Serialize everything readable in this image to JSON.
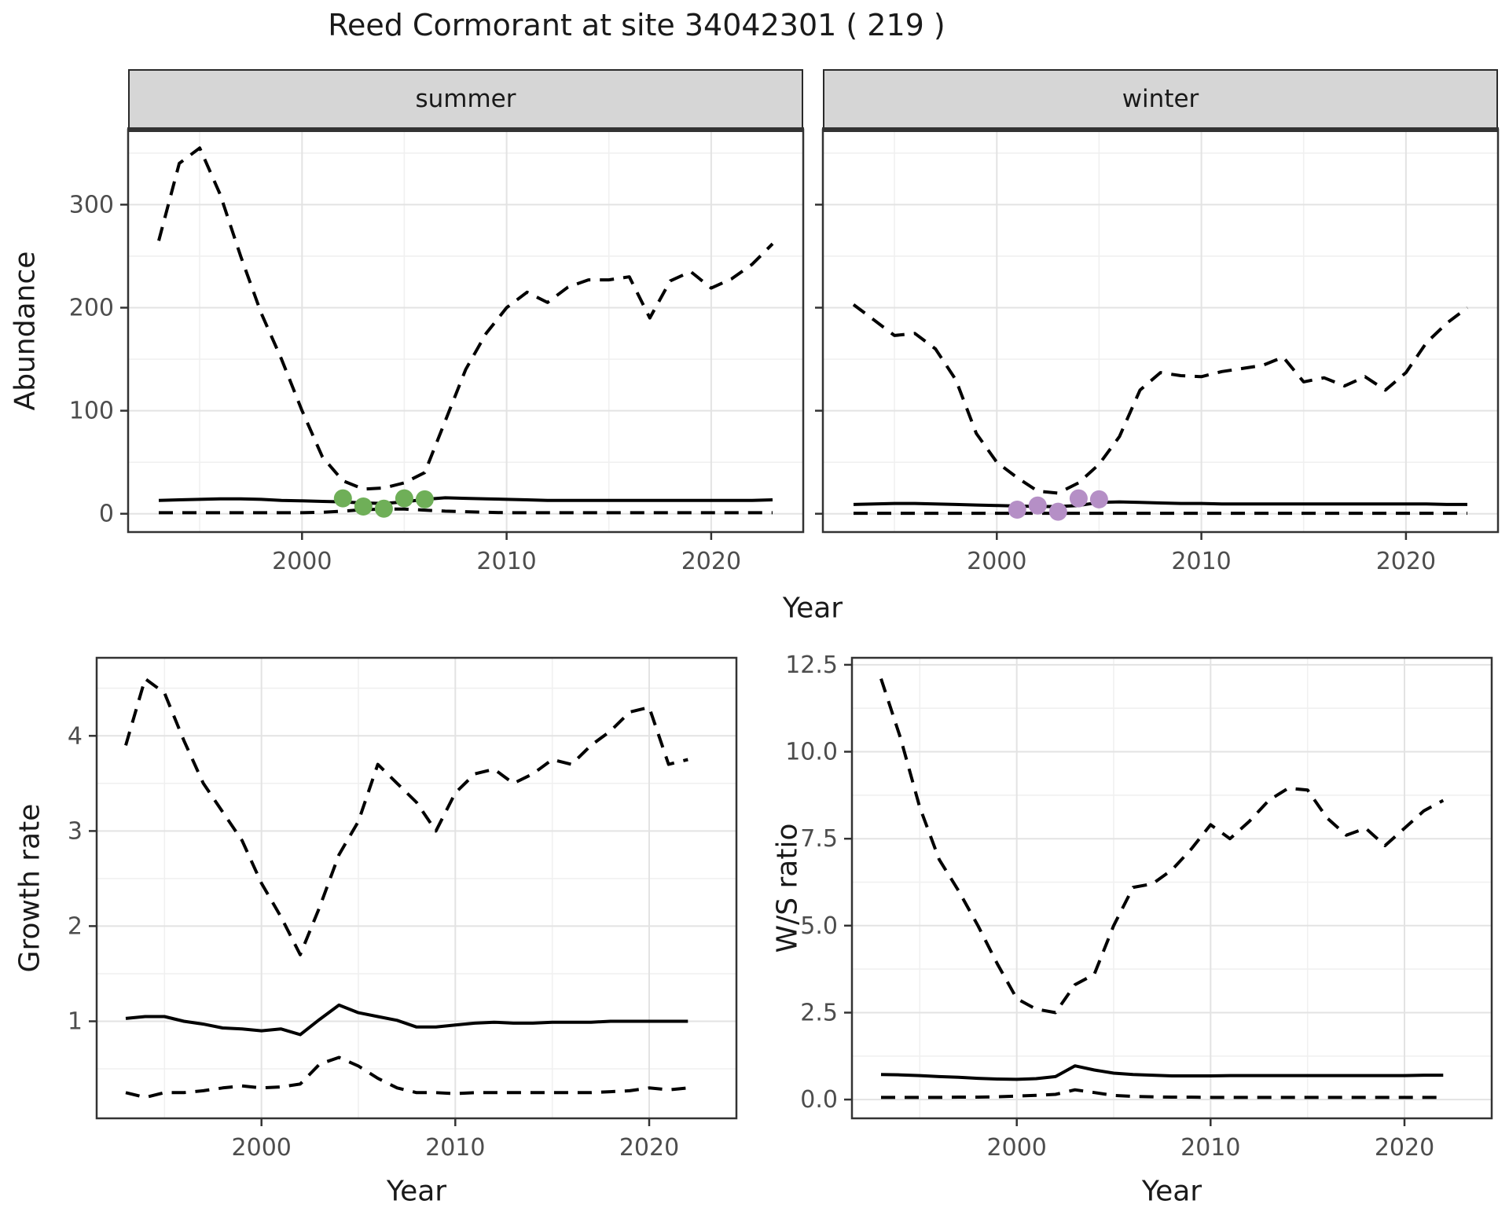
{
  "title": "Reed Cormorant at site 34042301 ( 219 )",
  "colors": {
    "summer_points": "#6FAF58",
    "winter_points": "#B58FC6",
    "series_line": "#000000",
    "grid_major": "#E3E3E3",
    "grid_minor": "#F0F0F0",
    "panel_border": "#333333",
    "strip_bg": "#D6D6D6",
    "strip_border": "#2A2A2A",
    "tick_label": "#4D4D4D",
    "text": "#1A1A1A"
  },
  "chart_data": [
    {
      "id": "abundance_summer",
      "type": "line",
      "facet": "summer",
      "xlabel": "Year",
      "ylabel": "Abundance",
      "xlim": [
        1991.5,
        2024.5
      ],
      "ylim": [
        -17.75,
        372.75
      ],
      "xticks": [
        2000,
        2010,
        2020
      ],
      "xticks_minor": [
        1995,
        2005,
        2015
      ],
      "yticks": [
        0,
        100,
        200,
        300
      ],
      "ytick_labels": [
        "0",
        "100",
        "200",
        "300"
      ],
      "yticks_minor": [
        50,
        150,
        250,
        350
      ],
      "grid": true,
      "legend": "none",
      "years": [
        1993,
        1994,
        1995,
        1996,
        1997,
        1998,
        1999,
        2000,
        2001,
        2002,
        2003,
        2004,
        2005,
        2006,
        2007,
        2008,
        2009,
        2010,
        2011,
        2012,
        2013,
        2014,
        2015,
        2016,
        2017,
        2018,
        2019,
        2020,
        2021,
        2022,
        2023
      ],
      "series": [
        {
          "name": "upper_95_ci",
          "style": "dashed",
          "values": [
            265,
            340,
            355,
            310,
            250,
            195,
            150,
            100,
            55,
            32,
            24,
            25,
            30,
            40,
            90,
            140,
            175,
            200,
            215,
            205,
            220,
            227,
            227,
            230,
            190,
            226,
            235,
            219,
            228,
            242,
            262
          ]
        },
        {
          "name": "median",
          "style": "solid",
          "values": [
            13,
            13.5,
            14,
            14.5,
            14.5,
            14,
            13,
            12.5,
            12,
            11.5,
            10.5,
            10,
            11.5,
            14,
            15.5,
            15,
            14.5,
            14,
            13.5,
            13,
            13,
            13,
            13,
            13,
            13,
            13,
            13,
            13,
            13,
            13,
            13.5
          ]
        },
        {
          "name": "lower_95_ci",
          "style": "dashed",
          "values": [
            1,
            1,
            1,
            1,
            1,
            1,
            1,
            1,
            1.5,
            2.5,
            4,
            4.5,
            4.5,
            3.5,
            2.5,
            2,
            1.5,
            1,
            1,
            1,
            1,
            1,
            1,
            1,
            1,
            1,
            1,
            1,
            1,
            1,
            1
          ]
        }
      ],
      "points": {
        "name": "observed_summer_count",
        "color": "#6FAF58",
        "years": [
          2002,
          2003,
          2004,
          2005,
          2006
        ],
        "values": [
          15,
          7,
          5,
          15,
          14
        ]
      }
    },
    {
      "id": "abundance_winter",
      "type": "line",
      "facet": "winter",
      "xlabel": "Year",
      "xlim": [
        1991.5,
        2024.5
      ],
      "ylim": [
        -17.75,
        372.75
      ],
      "xticks": [
        2000,
        2010,
        2020
      ],
      "xticks_minor": [
        1995,
        2005,
        2015
      ],
      "yticks": [
        0,
        100,
        200,
        300
      ],
      "ytick_labels": [],
      "yticks_minor": [
        50,
        150,
        250,
        350
      ],
      "grid": true,
      "legend": "none",
      "years": [
        1993,
        1994,
        1995,
        1996,
        1997,
        1998,
        1999,
        2000,
        2001,
        2002,
        2003,
        2004,
        2005,
        2006,
        2007,
        2008,
        2009,
        2010,
        2011,
        2012,
        2013,
        2014,
        2015,
        2016,
        2017,
        2018,
        2019,
        2020,
        2021,
        2022,
        2023
      ],
      "series": [
        {
          "name": "upper_95_ci",
          "style": "dashed",
          "values": [
            203,
            188,
            173,
            175,
            160,
            130,
            78,
            50,
            35,
            22,
            20,
            30,
            48,
            75,
            120,
            137,
            134,
            133,
            138,
            141,
            144,
            152,
            128,
            132,
            124,
            133,
            120,
            137,
            166,
            185,
            200
          ]
        },
        {
          "name": "median",
          "style": "solid",
          "values": [
            9,
            9.5,
            10,
            10,
            9.5,
            9,
            8.5,
            8,
            7.5,
            7,
            7,
            8,
            11,
            11.5,
            11,
            10.5,
            10,
            10,
            9.5,
            9.5,
            9.5,
            9.5,
            9.5,
            9.5,
            9.5,
            9.5,
            9.5,
            9.5,
            9.5,
            9,
            9
          ]
        },
        {
          "name": "lower_95_ci",
          "style": "dashed",
          "values": [
            0.5,
            0.5,
            0.5,
            0.5,
            0.5,
            0.5,
            0.5,
            0.5,
            0.5,
            0.5,
            0.5,
            0.5,
            0.5,
            0.5,
            0.5,
            0.5,
            0.5,
            0.5,
            0.5,
            0.5,
            0.5,
            0.5,
            0.5,
            0.5,
            0.5,
            0.5,
            0.5,
            0.5,
            0.5,
            0.5,
            0.5
          ]
        }
      ],
      "points": {
        "name": "observed_winter_count",
        "color": "#B58FC6",
        "years": [
          2001,
          2002,
          2003,
          2004,
          2005
        ],
        "values": [
          4,
          8,
          2,
          15,
          14
        ]
      }
    },
    {
      "id": "growth_rate",
      "type": "line",
      "facet": null,
      "xlabel": "Year",
      "ylabel": "Growth rate",
      "xlim": [
        1991.5,
        2024.5
      ],
      "ylim": [
        -0.02,
        4.82
      ],
      "xticks": [
        2000,
        2010,
        2020
      ],
      "xticks_minor": [
        1995,
        2005,
        2015
      ],
      "yticks": [
        1,
        2,
        3,
        4
      ],
      "ytick_labels": [
        "1",
        "2",
        "3",
        "4"
      ],
      "yticks_minor": [
        0.5,
        1.5,
        2.5,
        3.5,
        4.5
      ],
      "grid": true,
      "legend": "none",
      "years": [
        1993,
        1994,
        1995,
        1996,
        1997,
        1998,
        1999,
        2000,
        2001,
        2002,
        2003,
        2004,
        2005,
        2006,
        2007,
        2008,
        2009,
        2010,
        2011,
        2012,
        2013,
        2014,
        2015,
        2016,
        2017,
        2018,
        2019,
        2020,
        2021,
        2022
      ],
      "series": [
        {
          "name": "upper_95_ci",
          "style": "dashed",
          "values": [
            3.9,
            4.6,
            4.45,
            3.95,
            3.5,
            3.2,
            2.9,
            2.45,
            2.1,
            1.7,
            2.2,
            2.75,
            3.1,
            3.7,
            3.5,
            3.3,
            3.0,
            3.4,
            3.6,
            3.65,
            3.5,
            3.6,
            3.75,
            3.7,
            3.9,
            4.05,
            4.25,
            4.3,
            3.7,
            3.75
          ]
        },
        {
          "name": "median",
          "style": "solid",
          "values": [
            1.03,
            1.05,
            1.05,
            1.0,
            0.97,
            0.93,
            0.92,
            0.9,
            0.92,
            0.86,
            1.02,
            1.17,
            1.09,
            1.05,
            1.01,
            0.94,
            0.94,
            0.96,
            0.98,
            0.99,
            0.98,
            0.98,
            0.99,
            0.99,
            0.99,
            1.0,
            1.0,
            1.0,
            1.0,
            1.0
          ]
        },
        {
          "name": "lower_95_ci",
          "style": "dashed",
          "values": [
            0.25,
            0.2,
            0.25,
            0.25,
            0.27,
            0.3,
            0.32,
            0.3,
            0.31,
            0.34,
            0.55,
            0.62,
            0.53,
            0.4,
            0.3,
            0.25,
            0.25,
            0.24,
            0.25,
            0.25,
            0.25,
            0.25,
            0.25,
            0.25,
            0.25,
            0.26,
            0.27,
            0.3,
            0.28,
            0.3
          ]
        }
      ]
    },
    {
      "id": "ws_ratio",
      "type": "line",
      "facet": null,
      "xlabel": "Year",
      "ylabel": "W/S ratio",
      "xlim": [
        1991.5,
        2024.5
      ],
      "ylim": [
        -0.54,
        12.7
      ],
      "xticks": [
        2000,
        2010,
        2020
      ],
      "xticks_minor": [
        1995,
        2005,
        2015
      ],
      "yticks": [
        0,
        2.5,
        5,
        7.5,
        10,
        12.5
      ],
      "ytick_labels": [
        "0.0",
        "2.5",
        "5.0",
        "7.5",
        "10.0",
        "12.5"
      ],
      "yticks_minor": [
        1.25,
        3.75,
        6.25,
        8.75,
        11.25
      ],
      "grid": true,
      "legend": "none",
      "years": [
        1993,
        1994,
        1995,
        1996,
        1997,
        1998,
        1999,
        2000,
        2001,
        2002,
        2003,
        2004,
        2005,
        2006,
        2007,
        2008,
        2009,
        2010,
        2011,
        2012,
        2013,
        2014,
        2015,
        2016,
        2017,
        2018,
        2019,
        2020,
        2021,
        2022
      ],
      "series": [
        {
          "name": "upper_95_ci",
          "style": "dashed",
          "values": [
            12.1,
            10.4,
            8.4,
            6.9,
            6.0,
            5.0,
            3.9,
            2.9,
            2.6,
            2.5,
            3.3,
            3.6,
            5.0,
            6.1,
            6.2,
            6.6,
            7.2,
            7.9,
            7.5,
            8.0,
            8.6,
            8.95,
            8.9,
            8.1,
            7.6,
            7.8,
            7.3,
            7.8,
            8.3,
            8.6
          ]
        },
        {
          "name": "median",
          "style": "solid",
          "values": [
            0.72,
            0.71,
            0.69,
            0.66,
            0.64,
            0.61,
            0.59,
            0.58,
            0.6,
            0.66,
            0.97,
            0.85,
            0.76,
            0.72,
            0.7,
            0.68,
            0.68,
            0.68,
            0.69,
            0.69,
            0.69,
            0.69,
            0.69,
            0.69,
            0.69,
            0.69,
            0.69,
            0.69,
            0.7,
            0.7
          ]
        },
        {
          "name": "lower_95_ci",
          "style": "dashed",
          "values": [
            0.06,
            0.06,
            0.06,
            0.06,
            0.07,
            0.07,
            0.08,
            0.1,
            0.12,
            0.15,
            0.28,
            0.2,
            0.12,
            0.09,
            0.08,
            0.07,
            0.07,
            0.06,
            0.06,
            0.06,
            0.06,
            0.06,
            0.06,
            0.06,
            0.06,
            0.06,
            0.06,
            0.06,
            0.06,
            0.06
          ]
        }
      ]
    }
  ]
}
